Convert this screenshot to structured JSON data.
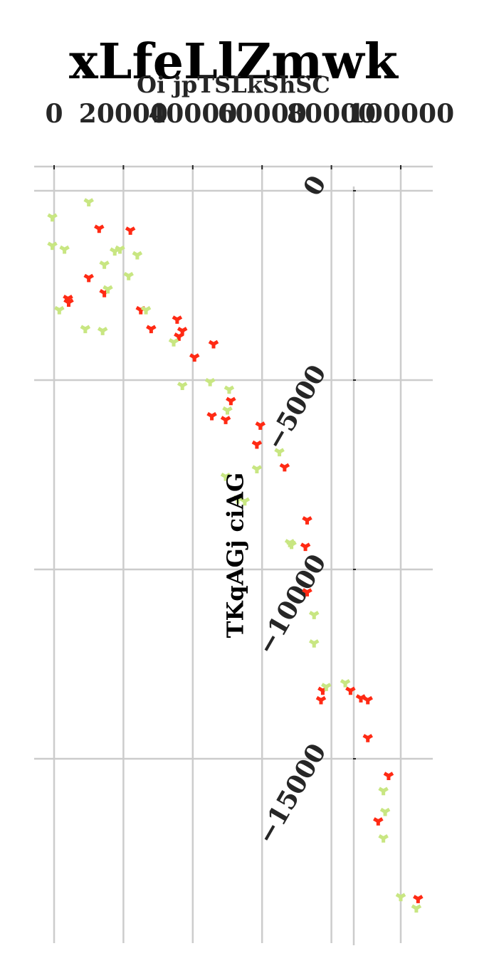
{
  "chart_data": {
    "type": "scatter",
    "title": "xLfeLlZmwk",
    "xlabel": "Oi jpTSLkShSC",
    "ylabel": "TKqAGj ciAG",
    "x_ticks": [
      0,
      20000,
      40000,
      60000,
      80000,
      100000
    ],
    "x_tick_labels": [
      "0",
      "20000",
      "40000",
      "60000",
      "80000",
      "100000"
    ],
    "y_ticks": [
      0,
      -5000,
      -10000,
      -15000
    ],
    "y_tick_labels": [
      "0",
      "−5000",
      "−10000",
      "−15000"
    ],
    "xlim": [
      0,
      100000
    ],
    "grid": true,
    "series": [
      {
        "color": "#ff2a14",
        "marker": "tri-down",
        "points": [
          [
            13000,
            -1000
          ],
          [
            22000,
            -1050
          ],
          [
            10000,
            -2300
          ],
          [
            14500,
            -2700
          ],
          [
            4000,
            -2850
          ],
          [
            4200,
            -2950
          ],
          [
            25000,
            -3150
          ],
          [
            28000,
            -3650
          ],
          [
            35500,
            -3400
          ],
          [
            37000,
            -3700
          ],
          [
            36000,
            -3850
          ],
          [
            46000,
            -4050
          ],
          [
            40500,
            -4400
          ],
          [
            51000,
            -5550
          ],
          [
            45500,
            -5950
          ],
          [
            49500,
            -6050
          ],
          [
            59500,
            -6200
          ],
          [
            58500,
            -6700
          ],
          [
            66500,
            -7300
          ],
          [
            73000,
            -8700
          ],
          [
            72500,
            -9400
          ],
          [
            73000,
            -10600
          ],
          [
            77500,
            -13200
          ],
          [
            85500,
            -13200
          ],
          [
            88500,
            -13400
          ],
          [
            90500,
            -13450
          ],
          [
            77000,
            -13450
          ],
          [
            90500,
            -14450
          ],
          [
            96500,
            -15450
          ],
          [
            93500,
            -16650
          ],
          [
            105000,
            -18700
          ]
        ]
      },
      {
        "color": "#c8e682",
        "marker": "tri-down",
        "points": [
          [
            10000,
            -300
          ],
          [
            -500,
            -700
          ],
          [
            -500,
            -1450
          ],
          [
            3000,
            -1550
          ],
          [
            17500,
            -1600
          ],
          [
            19000,
            -1550
          ],
          [
            24000,
            -1700
          ],
          [
            14500,
            -1950
          ],
          [
            21500,
            -2250
          ],
          [
            15500,
            -2600
          ],
          [
            1500,
            -3150
          ],
          [
            26500,
            -3150
          ],
          [
            9000,
            -3650
          ],
          [
            14000,
            -3700
          ],
          [
            34500,
            -4000
          ],
          [
            37000,
            -5150
          ],
          [
            45000,
            -5050
          ],
          [
            50500,
            -5250
          ],
          [
            50000,
            -5800
          ],
          [
            65000,
            -6900
          ],
          [
            58500,
            -7350
          ],
          [
            49500,
            -7550
          ],
          [
            53000,
            -8150
          ],
          [
            55000,
            -8200
          ],
          [
            68500,
            -9350
          ],
          [
            68000,
            -9300
          ],
          [
            75000,
            -11200
          ],
          [
            75000,
            -11950
          ],
          [
            78500,
            -13100
          ],
          [
            84000,
            -13000
          ],
          [
            95000,
            -15850
          ],
          [
            95500,
            -16400
          ],
          [
            95000,
            -17100
          ],
          [
            100000,
            -18650
          ],
          [
            104500,
            -18950
          ]
        ]
      }
    ]
  }
}
